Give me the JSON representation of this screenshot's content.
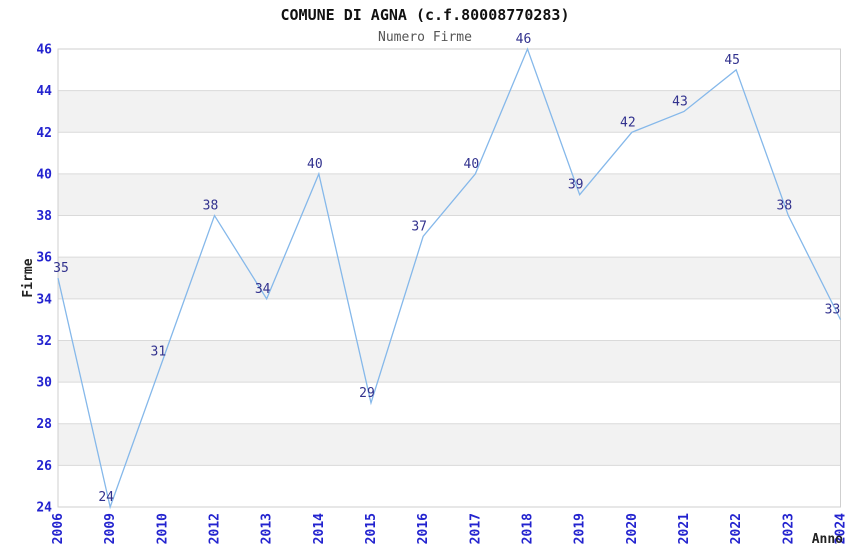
{
  "chart_data": {
    "type": "line",
    "title": "COMUNE DI AGNA (c.f.80008770283)",
    "subtitle": "Numero Firme",
    "xlabel": "Anno",
    "ylabel": "Firme",
    "x": [
      "2006",
      "2009",
      "2010",
      "2012",
      "2013",
      "2014",
      "2015",
      "2016",
      "2017",
      "2018",
      "2019",
      "2020",
      "2021",
      "2022",
      "2023",
      "2024"
    ],
    "series": [
      {
        "name": "Numero Firme",
        "values": [
          35,
          24,
          31,
          38,
          34,
          40,
          29,
          37,
          40,
          46,
          39,
          42,
          43,
          45,
          38,
          33
        ]
      }
    ],
    "ylim": [
      24,
      46
    ],
    "y_tick_step": 2,
    "y_ticks": [
      24,
      26,
      28,
      30,
      32,
      34,
      36,
      38,
      40,
      42,
      44,
      46
    ],
    "grid": "horizontal-lines-with-alternating-bands",
    "legend": "none",
    "data_labels": "on",
    "colors": {
      "line": "#85b8ea",
      "data_label": "#32328e",
      "tick_label": "#2323cf",
      "grid_line": "#dadada",
      "band_fill": "#f2f2f2",
      "plot_border": "#cfcfcf",
      "title": "#111111",
      "subtitle": "#555555",
      "axis_title": "#222222",
      "background": "#ffffff"
    }
  }
}
